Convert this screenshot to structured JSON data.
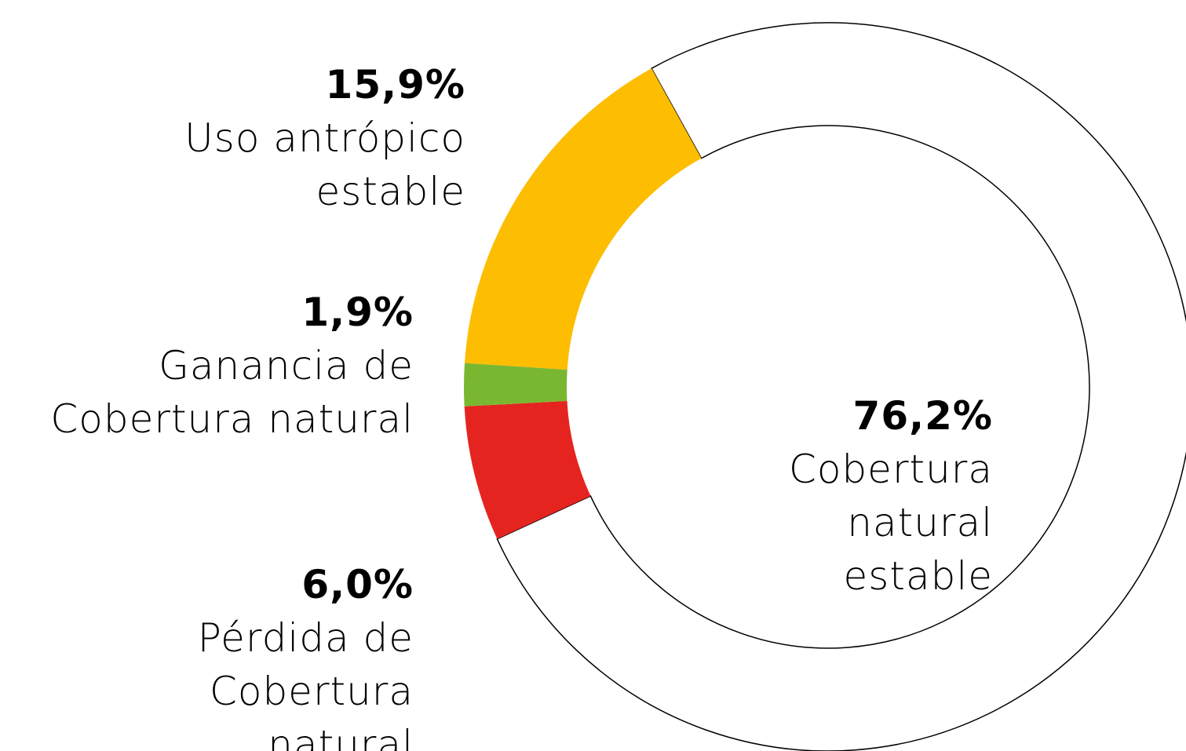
{
  "chart_data": {
    "type": "donut",
    "categories": [
      "Cobertura\nnatural\nestable",
      "Pérdida de\nCobertura\nnatural",
      "Ganancia de\nCobertura natural",
      "Uso antrópico\nestable"
    ],
    "values": [
      76.2,
      6.0,
      1.9,
      15.9
    ],
    "value_labels": [
      "76,2%",
      "6,0%",
      "1,9%",
      "15,9%"
    ],
    "colors": [
      "#ffffff",
      "#e52420",
      "#7ab730",
      "#fdbd00"
    ]
  }
}
